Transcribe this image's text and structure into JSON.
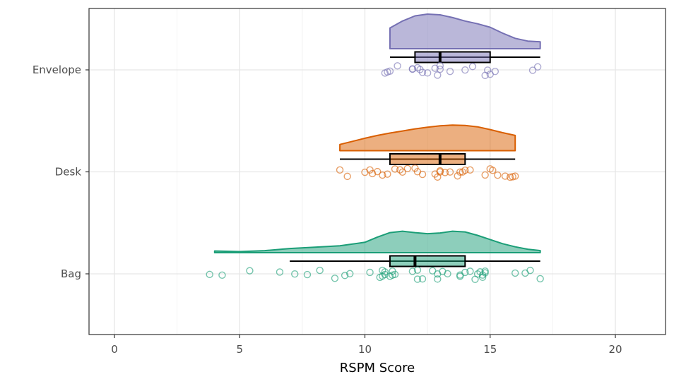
{
  "chart_data": {
    "type": "raincloud",
    "title": "",
    "xlabel": "RSPM Score",
    "ylabel": "",
    "xlim": [
      -1,
      22
    ],
    "x_ticks": [
      0,
      5,
      10,
      15,
      20
    ],
    "x_tick_labels": [
      "0",
      "5",
      "10",
      "15",
      "20"
    ],
    "grid": true,
    "legend": "none",
    "categories": [
      "Bag",
      "Desk",
      "Envelope"
    ],
    "series": [
      {
        "name": "Bag",
        "color": "#1b9e77",
        "density": {
          "x": [
            4,
            5,
            6,
            7,
            8,
            9,
            10,
            10.5,
            11,
            11.5,
            12,
            12.5,
            13,
            13.5,
            14,
            14.5,
            15,
            15.5,
            16,
            16.5,
            17
          ],
          "y": [
            0.05,
            0.03,
            0.06,
            0.12,
            0.16,
            0.2,
            0.3,
            0.45,
            0.58,
            0.62,
            0.58,
            0.55,
            0.57,
            0.62,
            0.6,
            0.5,
            0.38,
            0.26,
            0.17,
            0.1,
            0.06
          ]
        },
        "box": {
          "whisker_low": 7,
          "q1": 11,
          "median": 12,
          "q3": 14,
          "whisker_high": 17
        },
        "points": [
          3.8,
          4.3,
          5.4,
          6.6,
          7.2,
          7.7,
          8.2,
          8.8,
          9.2,
          9.4,
          10.2,
          10.6,
          10.7,
          10.7,
          10.8,
          10.8,
          11,
          11.1,
          11.1,
          11.2,
          11.9,
          12.1,
          12.3,
          12.1,
          12.7,
          12.9,
          12.9,
          13.1,
          13.3,
          13.8,
          13.8,
          14,
          14.2,
          14.4,
          14.5,
          14.6,
          14.7,
          14.8,
          14.8,
          14.7,
          16,
          16.4,
          16.6,
          17
        ]
      },
      {
        "name": "Desk",
        "color": "#d95f02",
        "density": {
          "x": [
            9,
            9.5,
            10,
            10.5,
            11,
            11.5,
            12,
            12.5,
            13,
            13.5,
            14,
            14.5,
            15,
            15.5,
            16
          ],
          "y": [
            0.18,
            0.27,
            0.36,
            0.44,
            0.51,
            0.57,
            0.63,
            0.68,
            0.72,
            0.74,
            0.73,
            0.69,
            0.61,
            0.52,
            0.44
          ]
        },
        "box": {
          "whisker_low": 9,
          "q1": 11,
          "median": 13,
          "q3": 14,
          "whisker_high": 16
        },
        "points": [
          9,
          9.3,
          10,
          10.2,
          10.3,
          10.5,
          10.7,
          10.9,
          11.2,
          11.4,
          11.5,
          11.7,
          12,
          12.1,
          12.3,
          12.8,
          12.9,
          13,
          13,
          13.2,
          13.4,
          13.7,
          13.8,
          13.9,
          14,
          14.2,
          14.8,
          15,
          15.1,
          15.3,
          15.6,
          15.8,
          15.9,
          16
        ]
      },
      {
        "name": "Envelope",
        "color": "#7570b3",
        "density": {
          "x": [
            11,
            11.5,
            12,
            12.5,
            13,
            13.5,
            14,
            14.5,
            15,
            15.5,
            16,
            16.5,
            17
          ],
          "y": [
            0.6,
            0.8,
            0.95,
            1.0,
            0.98,
            0.9,
            0.8,
            0.72,
            0.62,
            0.45,
            0.3,
            0.22,
            0.2
          ]
        },
        "box": {
          "whisker_low": 11,
          "q1": 12,
          "median": 13,
          "q3": 15,
          "whisker_high": 17
        },
        "points": [
          10.8,
          10.9,
          11,
          11.3,
          11.9,
          11.9,
          12.1,
          12.2,
          12.3,
          12.5,
          12.8,
          12.9,
          13,
          13,
          13.4,
          14,
          14.3,
          14.8,
          14.9,
          15,
          15.2,
          16.7,
          16.9
        ]
      }
    ]
  }
}
